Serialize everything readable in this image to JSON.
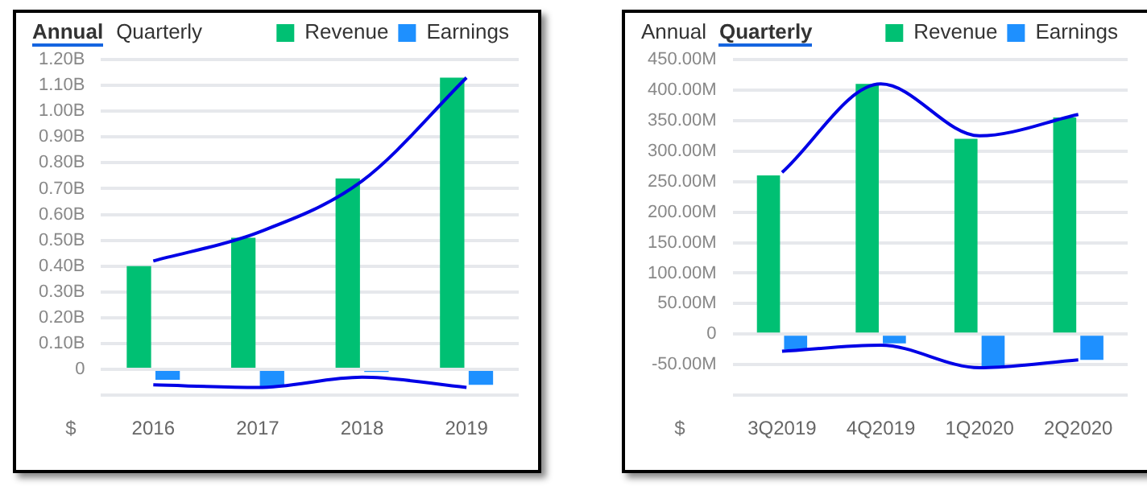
{
  "chart_data": [
    {
      "type": "bar",
      "title": "Annual",
      "annotations": [
        "Quarterly"
      ],
      "ylabel": "$",
      "categories": [
        "2016",
        "2017",
        "2018",
        "2019"
      ],
      "series": [
        {
          "name": "Revenue",
          "color": "#00c073",
          "values": [
            0.4,
            0.51,
            0.74,
            1.13
          ]
        },
        {
          "name": "Earnings",
          "color": "#1e90ff",
          "values": [
            -0.04,
            -0.065,
            -0.01,
            -0.06
          ]
        },
        {
          "type": "line",
          "color": "#0000e6",
          "values": [
            0.42,
            0.53,
            0.73,
            1.13
          ]
        },
        {
          "type": "line",
          "color": "#0000e6",
          "values": [
            -0.06,
            -0.07,
            -0.03,
            -0.07
          ]
        }
      ],
      "ylim": [
        -0.1,
        1.2
      ],
      "yticks": [
        {
          "value": -0.1,
          "label": null
        },
        {
          "value": 0,
          "label": "0"
        },
        {
          "value": 0.1,
          "label": "0.10B"
        },
        {
          "value": 0.2,
          "label": "0.20B"
        },
        {
          "value": 0.3,
          "label": "0.30B"
        },
        {
          "value": 0.4,
          "label": "0.40B"
        },
        {
          "value": 0.5,
          "label": "0.50B"
        },
        {
          "value": 0.6,
          "label": "0.60B"
        },
        {
          "value": 0.7,
          "label": "0.70B"
        },
        {
          "value": 0.8,
          "label": "0.80B"
        },
        {
          "value": 0.9,
          "label": "0.90B"
        },
        {
          "value": 1.0,
          "label": "1.00B"
        },
        {
          "value": 1.1,
          "label": "1.10B"
        },
        {
          "value": 1.2,
          "label": "1.20B"
        }
      ],
      "grid": "y",
      "legend": "top right",
      "marker": "none"
    },
    {
      "type": "bar",
      "subtitle": "Annual",
      "title": "Quarterly",
      "ylabel": "$",
      "categories": [
        "3Q2019",
        "4Q2019",
        "1Q2020",
        "2Q2020"
      ],
      "series": [
        {
          "name": "Revenue",
          "color": "#00c073",
          "values": [
            260,
            410,
            320,
            355
          ]
        },
        {
          "name": "Earnings",
          "color": "#1e90ff",
          "values": [
            -25,
            -15,
            -55,
            -42
          ]
        },
        {
          "type": "line",
          "color": "#0000e6",
          "values": [
            265,
            410,
            325,
            360
          ]
        },
        {
          "type": "line",
          "color": "#0000e6",
          "values": [
            -28,
            -18,
            -55,
            -42
          ]
        }
      ],
      "ylim": [
        -100,
        450
      ],
      "yticks": [
        {
          "value": -100,
          "label": null
        },
        {
          "value": -50,
          "label": "-50.00M"
        },
        {
          "value": 0,
          "label": "0"
        },
        {
          "value": 50,
          "label": "50.00M"
        },
        {
          "value": 100,
          "label": "100.00M"
        },
        {
          "value": 150,
          "label": "150.00M"
        },
        {
          "value": 200,
          "label": "200.00M"
        },
        {
          "value": 250,
          "label": "250.00M"
        },
        {
          "value": 300,
          "label": "300.00M"
        },
        {
          "value": 350,
          "label": "350.00M"
        },
        {
          "value": 400,
          "label": "400.00M"
        },
        {
          "value": 450,
          "label": "450.00M"
        }
      ],
      "grid": "y",
      "legend": "top right",
      "marker": "none"
    }
  ]
}
